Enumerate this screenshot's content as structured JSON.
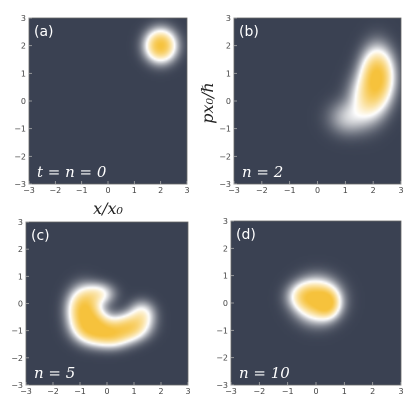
{
  "chart_data": [
    {
      "type": "heatmap",
      "tag": "(a)",
      "label": "t = n = 0",
      "xlabel": "x/x₀",
      "ylabel": "",
      "xlim": [
        -3,
        3
      ],
      "ylim": [
        -3,
        3
      ],
      "xticks": [
        -3,
        -2,
        -1,
        0,
        1,
        2,
        3
      ],
      "yticks": [
        -3,
        -2,
        -1,
        0,
        1,
        2,
        3
      ],
      "blobs": [
        {
          "x": 2.0,
          "y": 2.0,
          "sx": 0.35,
          "sy": 0.35,
          "amp": 1.0
        }
      ]
    },
    {
      "type": "heatmap",
      "tag": "(b)",
      "label": "n = 2",
      "xlabel": "",
      "ylabel": "px₀/ℏ",
      "xlim": [
        -3,
        3
      ],
      "ylim": [
        -3,
        3
      ],
      "xticks": [
        -3,
        -2,
        -1,
        0,
        1,
        2,
        3
      ],
      "yticks": [
        -3,
        -2,
        -1,
        0,
        1,
        2,
        3
      ],
      "blobs": [
        {
          "x": 2.15,
          "y": 0.9,
          "sx": 0.35,
          "sy": 0.6,
          "amp": 1.0
        },
        {
          "x": 1.8,
          "y": 0.1,
          "sx": 0.4,
          "sy": 0.55,
          "amp": 0.45
        },
        {
          "x": 1.1,
          "y": -0.6,
          "sx": 0.45,
          "sy": 0.4,
          "amp": 0.2
        }
      ]
    },
    {
      "type": "heatmap",
      "tag": "(c)",
      "label": "n = 5",
      "xlabel": "",
      "ylabel": "",
      "xlim": [
        -3,
        3
      ],
      "ylim": [
        -3,
        3
      ],
      "xticks": [
        -3,
        -2,
        -1,
        0,
        1,
        2,
        3
      ],
      "yticks": [
        -3,
        -2,
        -1,
        0,
        1,
        2,
        3
      ],
      "blobs": [
        {
          "x": -0.85,
          "y": -0.2,
          "sx": 0.35,
          "sy": 0.45,
          "amp": 0.95
        },
        {
          "x": -0.55,
          "y": -0.85,
          "sx": 0.4,
          "sy": 0.35,
          "amp": 0.9
        },
        {
          "x": 0.15,
          "y": -1.1,
          "sx": 0.45,
          "sy": 0.3,
          "amp": 0.8
        },
        {
          "x": 0.9,
          "y": -0.85,
          "sx": 0.4,
          "sy": 0.3,
          "amp": 0.65
        },
        {
          "x": 1.3,
          "y": -0.4,
          "sx": 0.3,
          "sy": 0.3,
          "amp": 0.35
        },
        {
          "x": -0.3,
          "y": 0.35,
          "sx": 0.35,
          "sy": 0.25,
          "amp": 0.35
        }
      ]
    },
    {
      "type": "heatmap",
      "tag": "(d)",
      "label": "n = 10",
      "xlabel": "",
      "ylabel": "",
      "xlim": [
        -3,
        3
      ],
      "ylim": [
        -3,
        3
      ],
      "xticks": [
        -3,
        -2,
        -1,
        0,
        1,
        2,
        3
      ],
      "yticks": [
        -3,
        -2,
        -1,
        0,
        1,
        2,
        3
      ],
      "blobs": [
        {
          "x": 0.05,
          "y": 0.1,
          "sx": 0.45,
          "sy": 0.45,
          "amp": 0.9
        },
        {
          "x": 0.4,
          "y": 0.0,
          "sx": 0.25,
          "sy": 0.3,
          "amp": 0.7
        },
        {
          "x": -0.4,
          "y": 0.25,
          "sx": 0.35,
          "sy": 0.3,
          "amp": 0.4
        }
      ]
    }
  ],
  "colors": {
    "background": "#3a4152",
    "mid": "#ffffff",
    "peak": "#f6c23c"
  }
}
